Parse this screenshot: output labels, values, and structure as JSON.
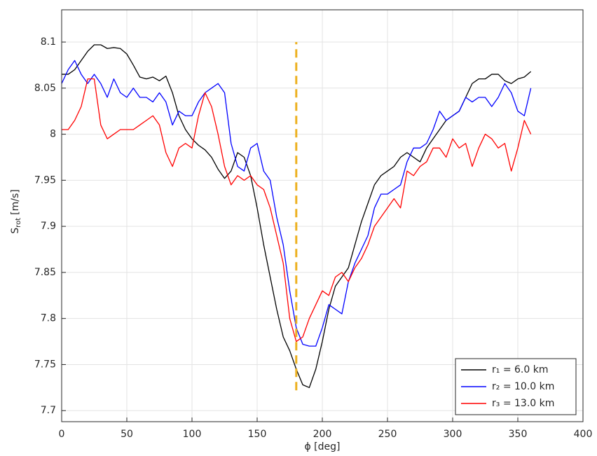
{
  "chart_data": {
    "type": "line",
    "ylabel": "S",
    "ylabel_sub": "rot",
    "ylabel_unit": "[m/s]",
    "xlabel": "ϕ [deg]",
    "x": [
      0,
      5,
      10,
      15,
      20,
      25,
      30,
      35,
      40,
      45,
      50,
      55,
      60,
      65,
      70,
      75,
      80,
      85,
      90,
      95,
      100,
      105,
      110,
      115,
      120,
      125,
      130,
      135,
      140,
      145,
      150,
      155,
      160,
      165,
      170,
      175,
      180,
      185,
      190,
      195,
      200,
      205,
      210,
      215,
      220,
      225,
      230,
      235,
      240,
      245,
      250,
      255,
      260,
      265,
      270,
      275,
      280,
      285,
      290,
      295,
      300,
      305,
      310,
      315,
      320,
      325,
      330,
      335,
      340,
      345,
      350,
      355,
      360
    ],
    "series": [
      {
        "name": "r₁ = 6.0 km",
        "color": "#000000",
        "values": [
          8.065,
          8.065,
          8.07,
          8.08,
          8.09,
          8.097,
          8.097,
          8.093,
          8.094,
          8.093,
          8.087,
          8.075,
          8.062,
          8.06,
          8.062,
          8.058,
          8.063,
          8.045,
          8.02,
          8.005,
          7.995,
          7.988,
          7.983,
          7.975,
          7.962,
          7.952,
          7.96,
          7.98,
          7.975,
          7.955,
          7.92,
          7.88,
          7.845,
          7.81,
          7.78,
          7.765,
          7.745,
          7.728,
          7.725,
          7.745,
          7.775,
          7.81,
          7.835,
          7.845,
          7.855,
          7.88,
          7.905,
          7.925,
          7.945,
          7.955,
          7.96,
          7.965,
          7.975,
          7.98,
          7.975,
          7.97,
          7.985,
          7.995,
          8.005,
          8.015,
          8.02,
          8.025,
          8.04,
          8.055,
          8.06,
          8.06,
          8.065,
          8.065,
          8.058,
          8.055,
          8.06,
          8.062,
          8.068
        ]
      },
      {
        "name": "r₂ = 10.0 km",
        "color": "#0000ff",
        "values": [
          8.055,
          8.07,
          8.08,
          8.065,
          8.055,
          8.065,
          8.055,
          8.04,
          8.06,
          8.045,
          8.04,
          8.05,
          8.04,
          8.04,
          8.035,
          8.045,
          8.035,
          8.01,
          8.025,
          8.02,
          8.02,
          8.035,
          8.045,
          8.05,
          8.055,
          8.045,
          7.99,
          7.965,
          7.96,
          7.985,
          7.99,
          7.96,
          7.95,
          7.91,
          7.88,
          7.83,
          7.79,
          7.772,
          7.77,
          7.77,
          7.79,
          7.815,
          7.81,
          7.805,
          7.84,
          7.86,
          7.875,
          7.89,
          7.92,
          7.935,
          7.935,
          7.94,
          7.945,
          7.97,
          7.985,
          7.985,
          7.99,
          8.005,
          8.025,
          8.015,
          8.02,
          8.025,
          8.04,
          8.035,
          8.04,
          8.04,
          8.03,
          8.04,
          8.055,
          8.045,
          8.025,
          8.02,
          8.05
        ]
      },
      {
        "name": "r₃ = 13.0 km",
        "color": "#ff0000",
        "values": [
          8.005,
          8.005,
          8.015,
          8.03,
          8.06,
          8.06,
          8.01,
          7.995,
          8.0,
          8.005,
          8.005,
          8.005,
          8.01,
          8.015,
          8.02,
          8.01,
          7.98,
          7.965,
          7.985,
          7.99,
          7.985,
          8.02,
          8.045,
          8.03,
          8.0,
          7.965,
          7.945,
          7.955,
          7.95,
          7.955,
          7.945,
          7.94,
          7.92,
          7.89,
          7.86,
          7.8,
          7.775,
          7.78,
          7.8,
          7.815,
          7.83,
          7.825,
          7.845,
          7.85,
          7.84,
          7.855,
          7.865,
          7.88,
          7.9,
          7.91,
          7.92,
          7.93,
          7.92,
          7.96,
          7.955,
          7.965,
          7.97,
          7.985,
          7.985,
          7.975,
          7.995,
          7.985,
          7.99,
          7.965,
          7.985,
          8.0,
          7.995,
          7.985,
          7.99,
          7.96,
          7.985,
          8.015,
          8.0
        ]
      }
    ],
    "vline": {
      "x": 180,
      "ymin": 7.722,
      "ymax": 8.1,
      "color": "#edb120"
    },
    "xlim": [
      0,
      400
    ],
    "xticks": [
      0,
      50,
      100,
      150,
      200,
      250,
      300,
      350,
      400
    ],
    "ylim": [
      7.688,
      8.135
    ],
    "yticks": [
      7.7,
      7.75,
      7.8,
      7.85,
      7.9,
      7.95,
      8,
      8.05,
      8.1
    ],
    "grid": true,
    "legend": "lower right"
  }
}
